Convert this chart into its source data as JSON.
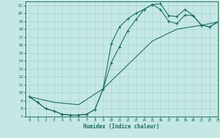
{
  "xlabel": "Humidex (Indice chaleur)",
  "xlim": [
    -0.5,
    23
  ],
  "ylim": [
    7,
    21.5
  ],
  "xticks": [
    0,
    1,
    2,
    3,
    4,
    5,
    6,
    7,
    8,
    9,
    10,
    11,
    12,
    13,
    14,
    15,
    16,
    17,
    18,
    19,
    20,
    21,
    22,
    23
  ],
  "yticks": [
    7,
    8,
    9,
    10,
    11,
    12,
    13,
    14,
    15,
    16,
    17,
    18,
    19,
    20,
    21
  ],
  "bg_color": "#c5e8e4",
  "grid_color": "#a8d4ce",
  "line_color": "#1a6b5a",
  "line1_x": [
    0,
    1,
    2,
    3,
    4,
    5,
    6,
    7,
    8,
    9,
    10,
    11,
    12,
    13,
    14,
    15,
    16,
    17,
    18,
    19,
    20,
    21,
    22,
    23
  ],
  "line1_y": [
    9.5,
    8.8,
    8.0,
    7.7,
    7.3,
    7.2,
    7.2,
    7.3,
    7.9,
    10.5,
    16.2,
    18.3,
    19.3,
    20.0,
    20.5,
    21.1,
    21.2,
    19.7,
    19.6,
    20.5,
    19.7,
    18.5,
    18.3,
    18.9
  ],
  "line2_x": [
    0,
    1,
    2,
    3,
    4,
    5,
    6,
    7,
    8,
    9,
    10,
    11,
    12,
    13,
    14,
    15,
    16,
    17,
    18,
    19,
    20,
    21,
    22,
    23
  ],
  "line2_y": [
    9.5,
    8.8,
    8.0,
    7.7,
    7.3,
    7.2,
    7.2,
    7.3,
    7.9,
    10.5,
    13.8,
    15.8,
    17.8,
    19.2,
    20.5,
    21.1,
    20.5,
    19.0,
    18.7,
    19.8,
    19.7,
    18.5,
    18.3,
    18.9
  ],
  "line3_x": [
    0,
    3,
    6,
    9,
    12,
    15,
    18,
    21,
    23
  ],
  "line3_y": [
    9.5,
    8.8,
    8.5,
    10.5,
    13.5,
    16.5,
    18.0,
    18.5,
    18.9
  ]
}
